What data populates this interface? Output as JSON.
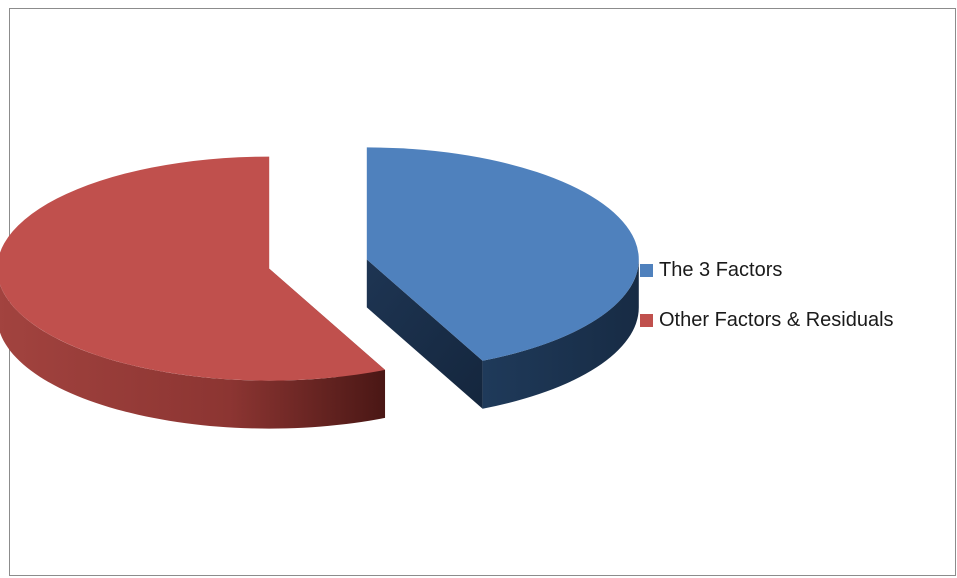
{
  "chart_data": {
    "type": "pie",
    "style": "3d-exploded",
    "legend_position": "right",
    "series": [
      {
        "name": "The 3 Factors",
        "value": 0.43,
        "color": "#4f81bd"
      },
      {
        "name": "Other Factors & Residuals",
        "value": 0.57,
        "color": "#c0504d"
      }
    ]
  }
}
